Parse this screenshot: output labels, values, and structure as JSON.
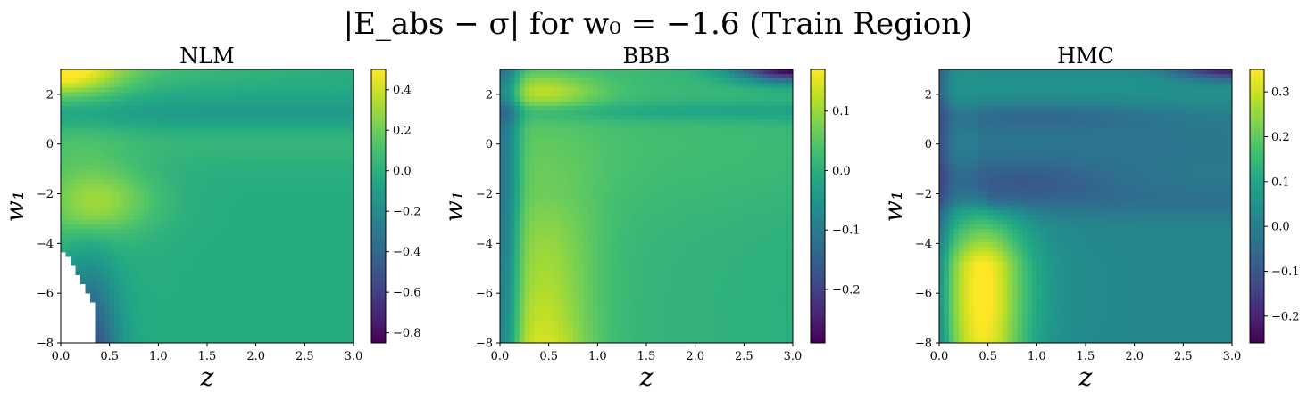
{
  "figure": {
    "title": "|E_abs − σ| for w₀ = −1.6 (Train Region)"
  },
  "chart_data": [
    {
      "type": "heatmap",
      "title": "NLM",
      "xlabel": "z",
      "ylabel": "w₁",
      "xlim": [
        0.0,
        3.0
      ],
      "ylim": [
        -8,
        3
      ],
      "xticks": [
        "0.0",
        "0.5",
        "1.0",
        "1.5",
        "2.0",
        "2.5",
        "3.0"
      ],
      "yticks": [
        "−8",
        "−6",
        "−4",
        "−2",
        "0",
        "2"
      ],
      "colorbar": {
        "min": -0.85,
        "max": 0.5,
        "ticks": [
          0.4,
          0.2,
          0.0,
          -0.2,
          -0.4,
          -0.6,
          -0.8
        ],
        "tick_labels": [
          "0.4",
          "0.2",
          "0.0",
          "−0.2",
          "−0.4",
          "−0.6",
          "−0.8"
        ],
        "colormap": "viridis"
      },
      "grid": false
    },
    {
      "type": "heatmap",
      "title": "BBB",
      "xlabel": "z",
      "ylabel": "w₁",
      "xlim": [
        0.0,
        3.0
      ],
      "ylim": [
        -8,
        3
      ],
      "xticks": [
        "0.0",
        "0.5",
        "1.0",
        "1.5",
        "2.0",
        "2.5",
        "3.0"
      ],
      "yticks": [
        "−8",
        "−6",
        "−4",
        "−2",
        "0",
        "2"
      ],
      "colorbar": {
        "min": -0.29,
        "max": 0.17,
        "ticks": [
          0.1,
          0.0,
          -0.1,
          -0.2
        ],
        "tick_labels": [
          "0.1",
          "0.0",
          "−0.1",
          "−0.2"
        ],
        "colormap": "viridis"
      },
      "grid": false
    },
    {
      "type": "heatmap",
      "title": "HMC",
      "xlabel": "z",
      "ylabel": "w₁",
      "xlim": [
        0.0,
        3.0
      ],
      "ylim": [
        -8,
        3
      ],
      "xticks": [
        "0.0",
        "0.5",
        "1.0",
        "1.5",
        "2.0",
        "2.5",
        "3.0"
      ],
      "yticks": [
        "−8",
        "−6",
        "−4",
        "−2",
        "0",
        "2"
      ],
      "colorbar": {
        "min": -0.26,
        "max": 0.35,
        "ticks": [
          0.3,
          0.2,
          0.1,
          0.0,
          -0.1,
          -0.2
        ],
        "tick_labels": [
          "0.3",
          "0.2",
          "0.1",
          "0.0",
          "−0.1",
          "−0.2"
        ],
        "colormap": "viridis"
      },
      "grid": false
    }
  ]
}
